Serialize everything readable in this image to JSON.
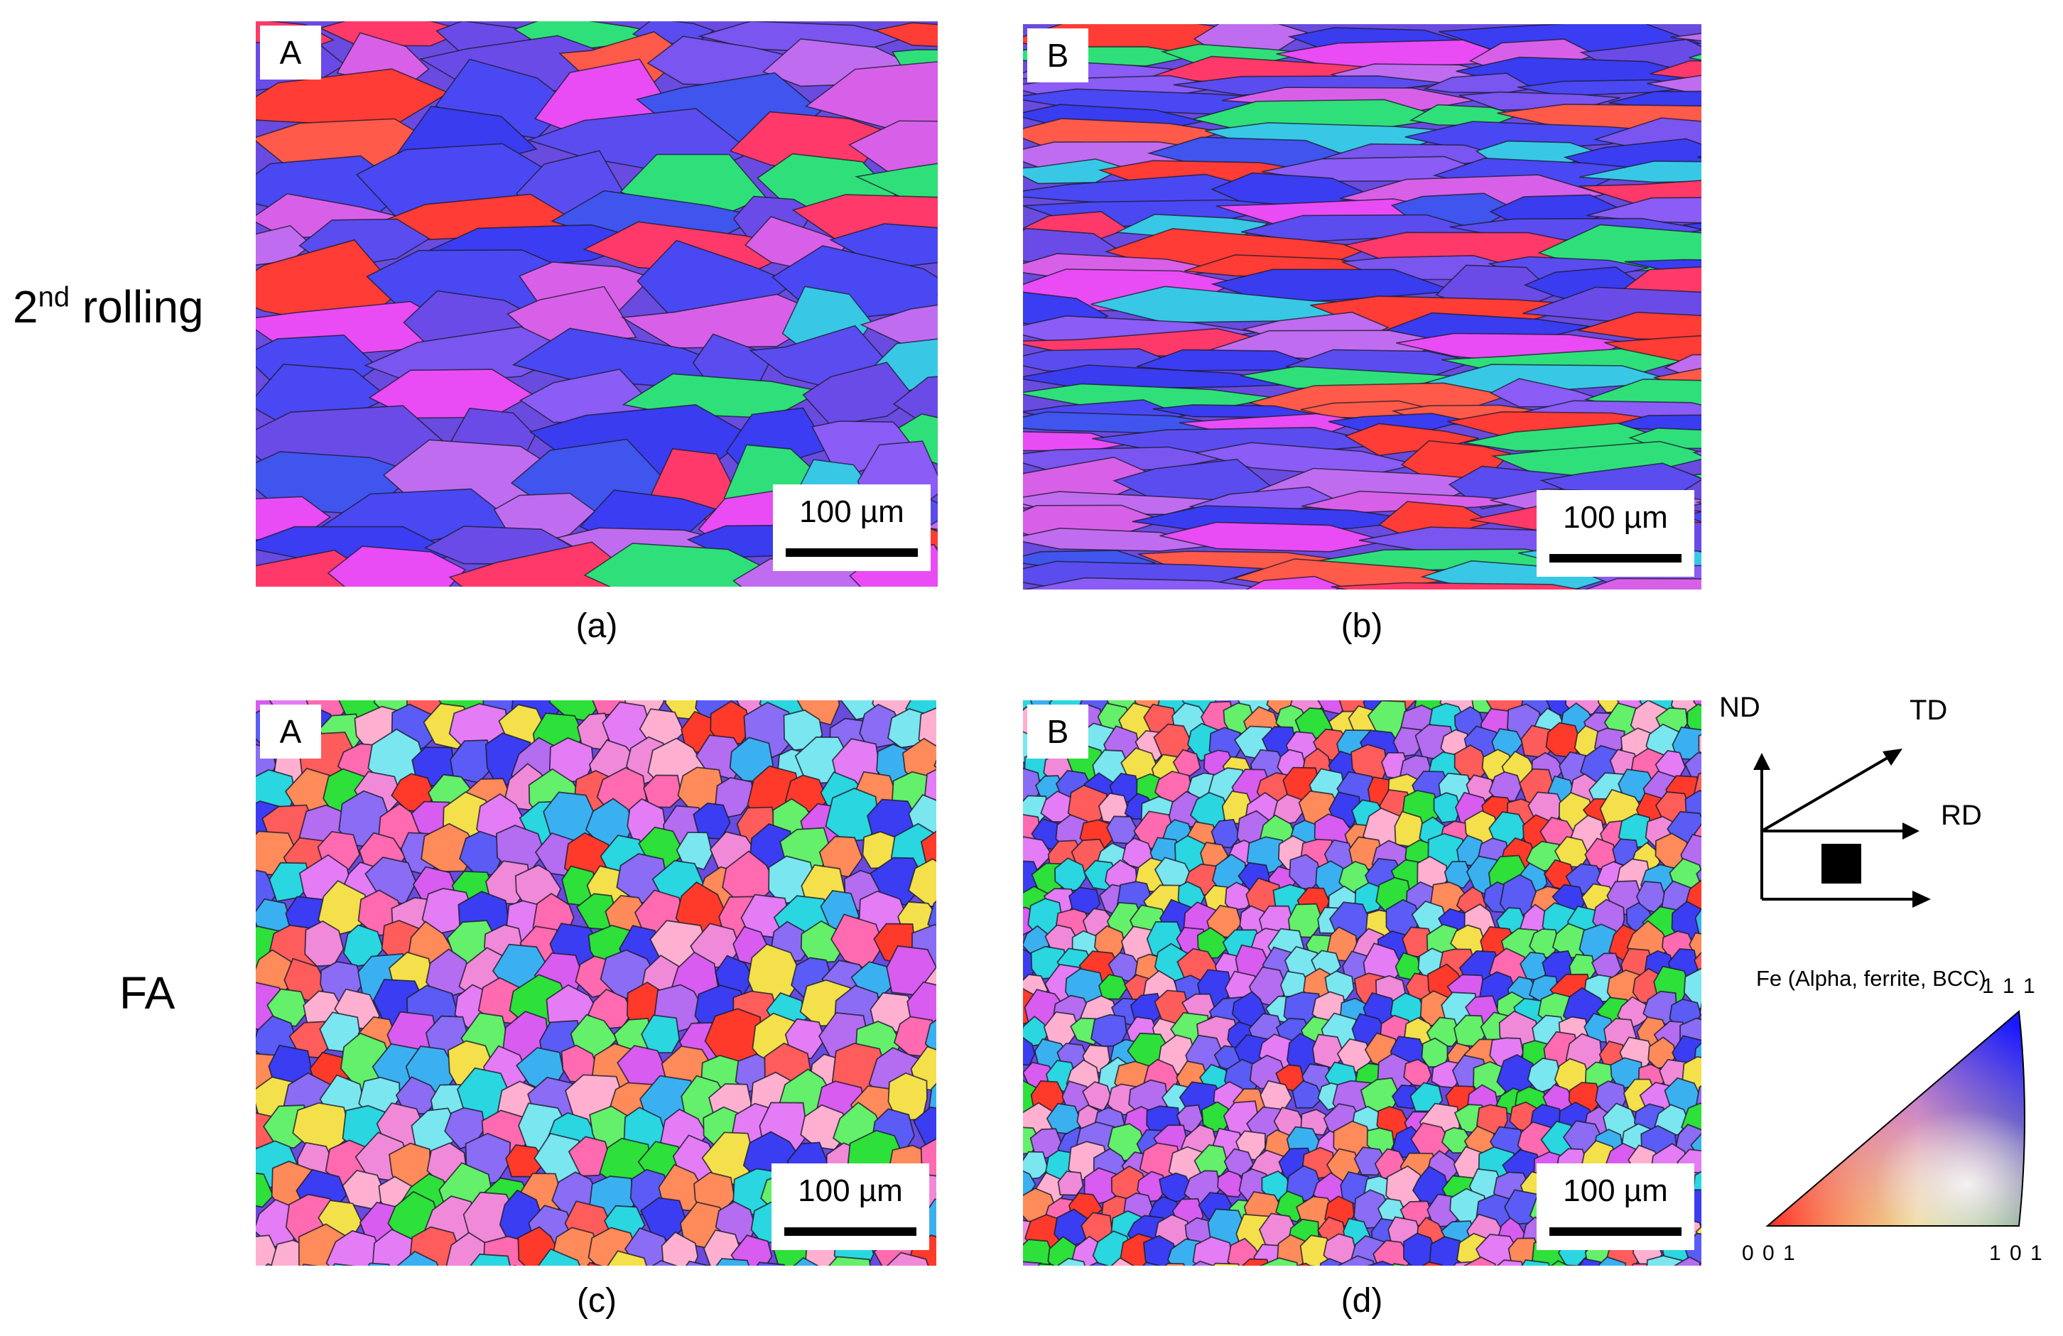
{
  "rows": [
    {
      "label_main": "2",
      "label_sup": "nd",
      "label_rest": " rolling"
    },
    {
      "label_main": "FA",
      "label_sup": "",
      "label_rest": ""
    }
  ],
  "panels": [
    {
      "id": "a",
      "tag": "A",
      "caption": "(a)",
      "scale": "100 µm",
      "style": "rolled-coarse"
    },
    {
      "id": "b",
      "tag": "B",
      "caption": "(b)",
      "scale": "100 µm",
      "style": "rolled-fine"
    },
    {
      "id": "c",
      "tag": "A",
      "caption": "(c)",
      "scale": "100 µm",
      "style": "equiaxed-coarse"
    },
    {
      "id": "d",
      "tag": "B",
      "caption": "(d)",
      "scale": "100 µm",
      "style": "equiaxed-fine"
    }
  ],
  "axes": {
    "nd": "ND",
    "td": "TD",
    "rd": "RD"
  },
  "legend": {
    "title": "Fe (Alpha, ferrite, BCC)",
    "corner_111": "1 1 1",
    "corner_001": "0 0 1",
    "corner_101": "1 0 1"
  },
  "colors": {
    "red": "#ff3a2a",
    "green": "#2ee03a",
    "blue": "#3b3df2",
    "magenta": "#d85cf0",
    "cyan": "#2ad6e0"
  }
}
